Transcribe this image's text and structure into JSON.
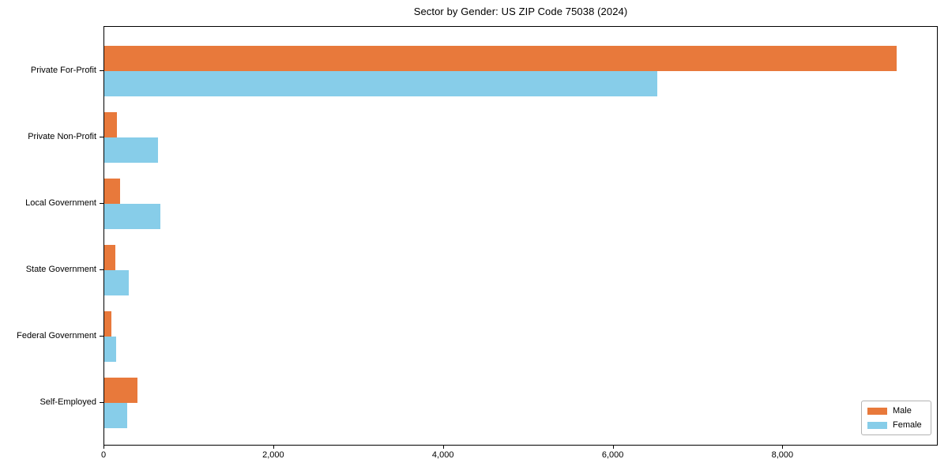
{
  "figure": {
    "background": "#ffffff",
    "spine_color": "#000000"
  },
  "chart_data": {
    "type": "bar",
    "orientation": "horizontal",
    "title": "Sector by Gender: US ZIP Code 75038 (2024)",
    "categories": [
      "Private For-Profit",
      "Private Non-Profit",
      "Local Government",
      "State Government",
      "Federal Government",
      "Self-Employed"
    ],
    "series": [
      {
        "name": "Male",
        "color": "#e8793b",
        "values": [
          9340,
          145,
          190,
          130,
          85,
          390
        ]
      },
      {
        "name": "Female",
        "color": "#87cde9",
        "values": [
          6520,
          635,
          665,
          290,
          140,
          270
        ]
      }
    ],
    "xlabel": "",
    "ylabel": "",
    "xlim": [
      0,
      9830
    ],
    "xticks": {
      "values": [
        0,
        2000,
        4000,
        6000,
        8000
      ],
      "labels": [
        "0",
        "2,000",
        "4,000",
        "6,000",
        "8,000"
      ]
    },
    "grid": false,
    "legend": {
      "position": "lower right",
      "entries": [
        "Male",
        "Female"
      ]
    }
  }
}
